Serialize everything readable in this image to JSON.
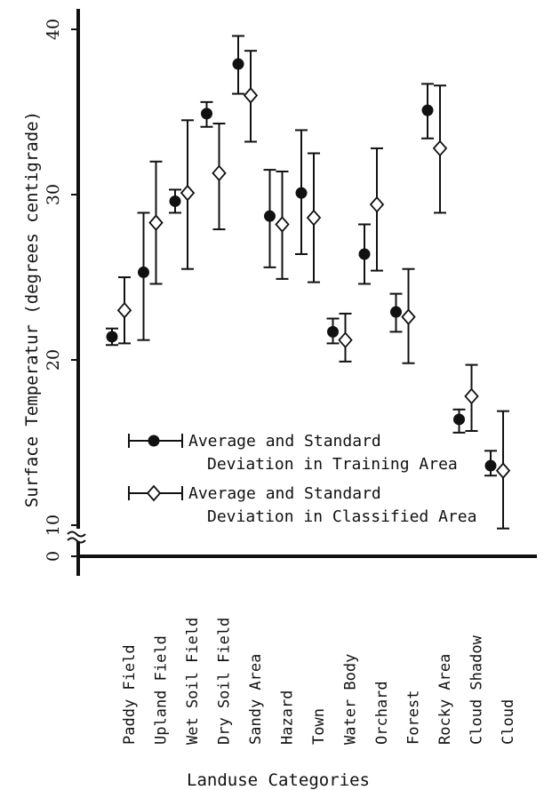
{
  "chart_data": {
    "type": "errorbar",
    "ylabel": "Surface Temperatur (degrees centigrade)",
    "xlabel": "Landuse Categories",
    "yticks": [
      {
        "value": 0,
        "label": "0"
      },
      {
        "value": 10,
        "label": "10"
      },
      {
        "value": 20,
        "label": "20"
      },
      {
        "value": 30,
        "label": "30"
      },
      {
        "value": 40,
        "label": "40"
      }
    ],
    "axis_break": "between 0 and 10",
    "ylim": [
      10,
      40
    ],
    "categories": [
      "Paddy Field",
      "Upland Field",
      "Wet Soil Field",
      "Dry Soil Field",
      "Sandy Area",
      "Hazard",
      "Town",
      "Water Body",
      "Orchard",
      "Forest",
      "Rocky Area",
      "Cloud Shadow",
      "Cloud"
    ],
    "series": [
      {
        "marker": "filled-circle",
        "legend": [
          "Average and Standard",
          "Deviation in Training Area"
        ],
        "mean": [
          21.4,
          25.3,
          29.6,
          34.9,
          37.9,
          28.7,
          30.1,
          21.7,
          26.4,
          22.9,
          35.1,
          16.4,
          13.6
        ],
        "low": [
          20.9,
          21.2,
          28.9,
          34.1,
          36.1,
          25.6,
          26.4,
          21.0,
          24.6,
          21.7,
          33.4,
          15.6,
          13.0
        ],
        "high": [
          21.9,
          28.9,
          30.3,
          35.6,
          39.6,
          31.5,
          33.9,
          22.5,
          28.2,
          24.0,
          36.7,
          17.0,
          14.5
        ]
      },
      {
        "marker": "open-diamond",
        "legend": [
          "Average and Standard",
          "Deviation in Classified Area"
        ],
        "mean": [
          23.0,
          28.3,
          30.1,
          31.3,
          36.0,
          28.2,
          28.6,
          21.2,
          29.4,
          22.6,
          32.8,
          17.8,
          13.3
        ],
        "low": [
          21.0,
          24.6,
          25.5,
          27.9,
          33.2,
          24.9,
          24.7,
          19.9,
          25.4,
          19.8,
          28.9,
          15.7,
          9.8
        ],
        "high": [
          25.0,
          32.0,
          34.5,
          34.3,
          38.7,
          31.4,
          32.5,
          22.8,
          32.8,
          25.5,
          36.6,
          19.7,
          16.9
        ]
      }
    ]
  }
}
